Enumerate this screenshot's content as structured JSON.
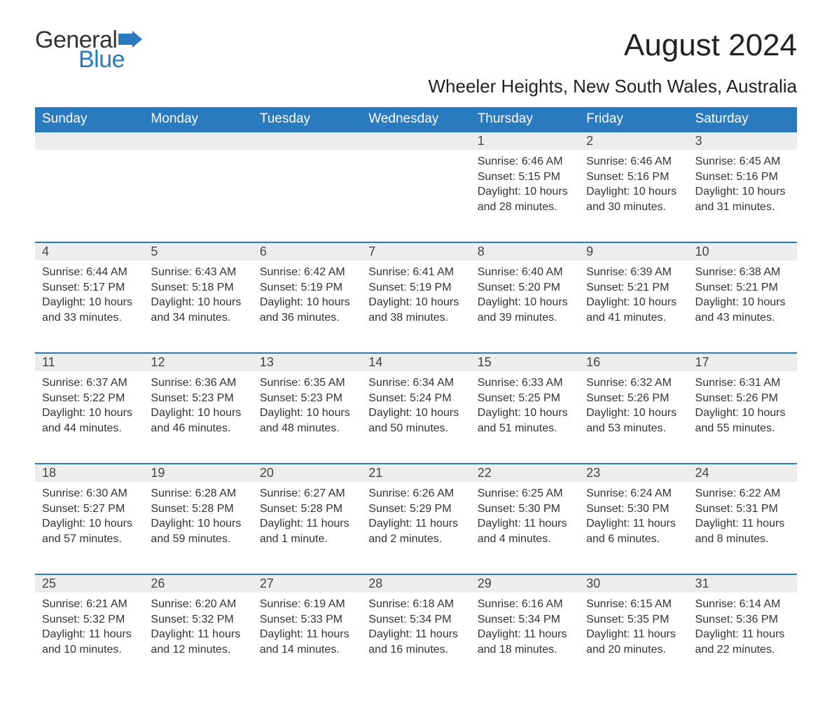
{
  "logo": {
    "text1": "General",
    "text2": "Blue",
    "flag_color": "#2a7ac0"
  },
  "title": "August 2024",
  "location": "Wheeler Heights, New South Wales, Australia",
  "colors": {
    "header_bg": "#2a7ac0",
    "header_text": "#ffffff",
    "daynum_bg": "#ededed",
    "row_border": "#2a7ac0",
    "body_text": "#333333",
    "background": "#ffffff"
  },
  "typography": {
    "title_fontsize": 44,
    "location_fontsize": 26,
    "header_fontsize": 19,
    "daynum_fontsize": 18,
    "cell_fontsize": 16
  },
  "weekdays": [
    "Sunday",
    "Monday",
    "Tuesday",
    "Wednesday",
    "Thursday",
    "Friday",
    "Saturday"
  ],
  "weeks": [
    [
      null,
      null,
      null,
      null,
      {
        "n": "1",
        "sunrise": "6:46 AM",
        "sunset": "5:15 PM",
        "daylight": "10 hours and 28 minutes."
      },
      {
        "n": "2",
        "sunrise": "6:46 AM",
        "sunset": "5:16 PM",
        "daylight": "10 hours and 30 minutes."
      },
      {
        "n": "3",
        "sunrise": "6:45 AM",
        "sunset": "5:16 PM",
        "daylight": "10 hours and 31 minutes."
      }
    ],
    [
      {
        "n": "4",
        "sunrise": "6:44 AM",
        "sunset": "5:17 PM",
        "daylight": "10 hours and 33 minutes."
      },
      {
        "n": "5",
        "sunrise": "6:43 AM",
        "sunset": "5:18 PM",
        "daylight": "10 hours and 34 minutes."
      },
      {
        "n": "6",
        "sunrise": "6:42 AM",
        "sunset": "5:19 PM",
        "daylight": "10 hours and 36 minutes."
      },
      {
        "n": "7",
        "sunrise": "6:41 AM",
        "sunset": "5:19 PM",
        "daylight": "10 hours and 38 minutes."
      },
      {
        "n": "8",
        "sunrise": "6:40 AM",
        "sunset": "5:20 PM",
        "daylight": "10 hours and 39 minutes."
      },
      {
        "n": "9",
        "sunrise": "6:39 AM",
        "sunset": "5:21 PM",
        "daylight": "10 hours and 41 minutes."
      },
      {
        "n": "10",
        "sunrise": "6:38 AM",
        "sunset": "5:21 PM",
        "daylight": "10 hours and 43 minutes."
      }
    ],
    [
      {
        "n": "11",
        "sunrise": "6:37 AM",
        "sunset": "5:22 PM",
        "daylight": "10 hours and 44 minutes."
      },
      {
        "n": "12",
        "sunrise": "6:36 AM",
        "sunset": "5:23 PM",
        "daylight": "10 hours and 46 minutes."
      },
      {
        "n": "13",
        "sunrise": "6:35 AM",
        "sunset": "5:23 PM",
        "daylight": "10 hours and 48 minutes."
      },
      {
        "n": "14",
        "sunrise": "6:34 AM",
        "sunset": "5:24 PM",
        "daylight": "10 hours and 50 minutes."
      },
      {
        "n": "15",
        "sunrise": "6:33 AM",
        "sunset": "5:25 PM",
        "daylight": "10 hours and 51 minutes."
      },
      {
        "n": "16",
        "sunrise": "6:32 AM",
        "sunset": "5:26 PM",
        "daylight": "10 hours and 53 minutes."
      },
      {
        "n": "17",
        "sunrise": "6:31 AM",
        "sunset": "5:26 PM",
        "daylight": "10 hours and 55 minutes."
      }
    ],
    [
      {
        "n": "18",
        "sunrise": "6:30 AM",
        "sunset": "5:27 PM",
        "daylight": "10 hours and 57 minutes."
      },
      {
        "n": "19",
        "sunrise": "6:28 AM",
        "sunset": "5:28 PM",
        "daylight": "10 hours and 59 minutes."
      },
      {
        "n": "20",
        "sunrise": "6:27 AM",
        "sunset": "5:28 PM",
        "daylight": "11 hours and 1 minute."
      },
      {
        "n": "21",
        "sunrise": "6:26 AM",
        "sunset": "5:29 PM",
        "daylight": "11 hours and 2 minutes."
      },
      {
        "n": "22",
        "sunrise": "6:25 AM",
        "sunset": "5:30 PM",
        "daylight": "11 hours and 4 minutes."
      },
      {
        "n": "23",
        "sunrise": "6:24 AM",
        "sunset": "5:30 PM",
        "daylight": "11 hours and 6 minutes."
      },
      {
        "n": "24",
        "sunrise": "6:22 AM",
        "sunset": "5:31 PM",
        "daylight": "11 hours and 8 minutes."
      }
    ],
    [
      {
        "n": "25",
        "sunrise": "6:21 AM",
        "sunset": "5:32 PM",
        "daylight": "11 hours and 10 minutes."
      },
      {
        "n": "26",
        "sunrise": "6:20 AM",
        "sunset": "5:32 PM",
        "daylight": "11 hours and 12 minutes."
      },
      {
        "n": "27",
        "sunrise": "6:19 AM",
        "sunset": "5:33 PM",
        "daylight": "11 hours and 14 minutes."
      },
      {
        "n": "28",
        "sunrise": "6:18 AM",
        "sunset": "5:34 PM",
        "daylight": "11 hours and 16 minutes."
      },
      {
        "n": "29",
        "sunrise": "6:16 AM",
        "sunset": "5:34 PM",
        "daylight": "11 hours and 18 minutes."
      },
      {
        "n": "30",
        "sunrise": "6:15 AM",
        "sunset": "5:35 PM",
        "daylight": "11 hours and 20 minutes."
      },
      {
        "n": "31",
        "sunrise": "6:14 AM",
        "sunset": "5:36 PM",
        "daylight": "11 hours and 22 minutes."
      }
    ]
  ],
  "labels": {
    "sunrise": "Sunrise:",
    "sunset": "Sunset:",
    "daylight": "Daylight:"
  }
}
